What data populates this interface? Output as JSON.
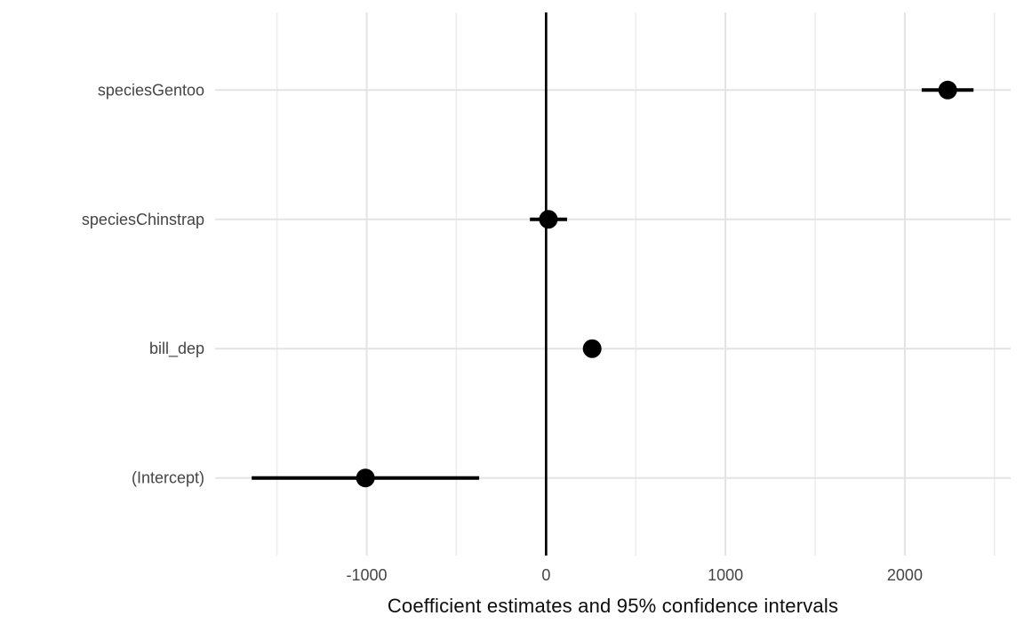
{
  "chart_data": {
    "type": "scatter",
    "subtype": "coefficient-pointrange-forest-plot",
    "title": "",
    "xlabel": "Coefficient estimates and 95% confidence intervals",
    "ylabel": "",
    "categories_top_to_bottom": [
      "speciesGentoo",
      "speciesChinstrap",
      "bill_dep",
      "(Intercept)"
    ],
    "points": [
      {
        "term": "speciesGentoo",
        "estimate": 2239,
        "ci_low": 2094,
        "ci_high": 2383
      },
      {
        "term": "speciesChinstrap",
        "estimate": 13,
        "ci_low": -90,
        "ci_high": 117
      },
      {
        "term": "bill_dep",
        "estimate": 257,
        "ci_low": 223,
        "ci_high": 291
      },
      {
        "term": "(Intercept)",
        "estimate": -1007,
        "ci_low": -1641,
        "ci_high": -373
      }
    ],
    "xlim": [
      -1845,
      2590
    ],
    "x_major_ticks": [
      -1000,
      0,
      1000,
      2000
    ],
    "x_tick_labels": [
      "-1000",
      "0",
      "1000",
      "2000"
    ],
    "x_minor_ticks": [
      -1500,
      -500,
      500,
      1500,
      2500
    ],
    "reference_line_x": 0,
    "grid": {
      "vertical_major": true,
      "vertical_minor": true,
      "horizontal_major": true,
      "horizontal_minor": false
    },
    "legend": "none"
  },
  "colors": {
    "background": "#ffffff",
    "grid_major": "#e3e3e3",
    "grid_minor": "#ededed",
    "axis_text": "#454545",
    "axis_title": "#0d0d0d",
    "point": "#000000",
    "ci_line": "#000000",
    "reference_line": "#000000"
  }
}
